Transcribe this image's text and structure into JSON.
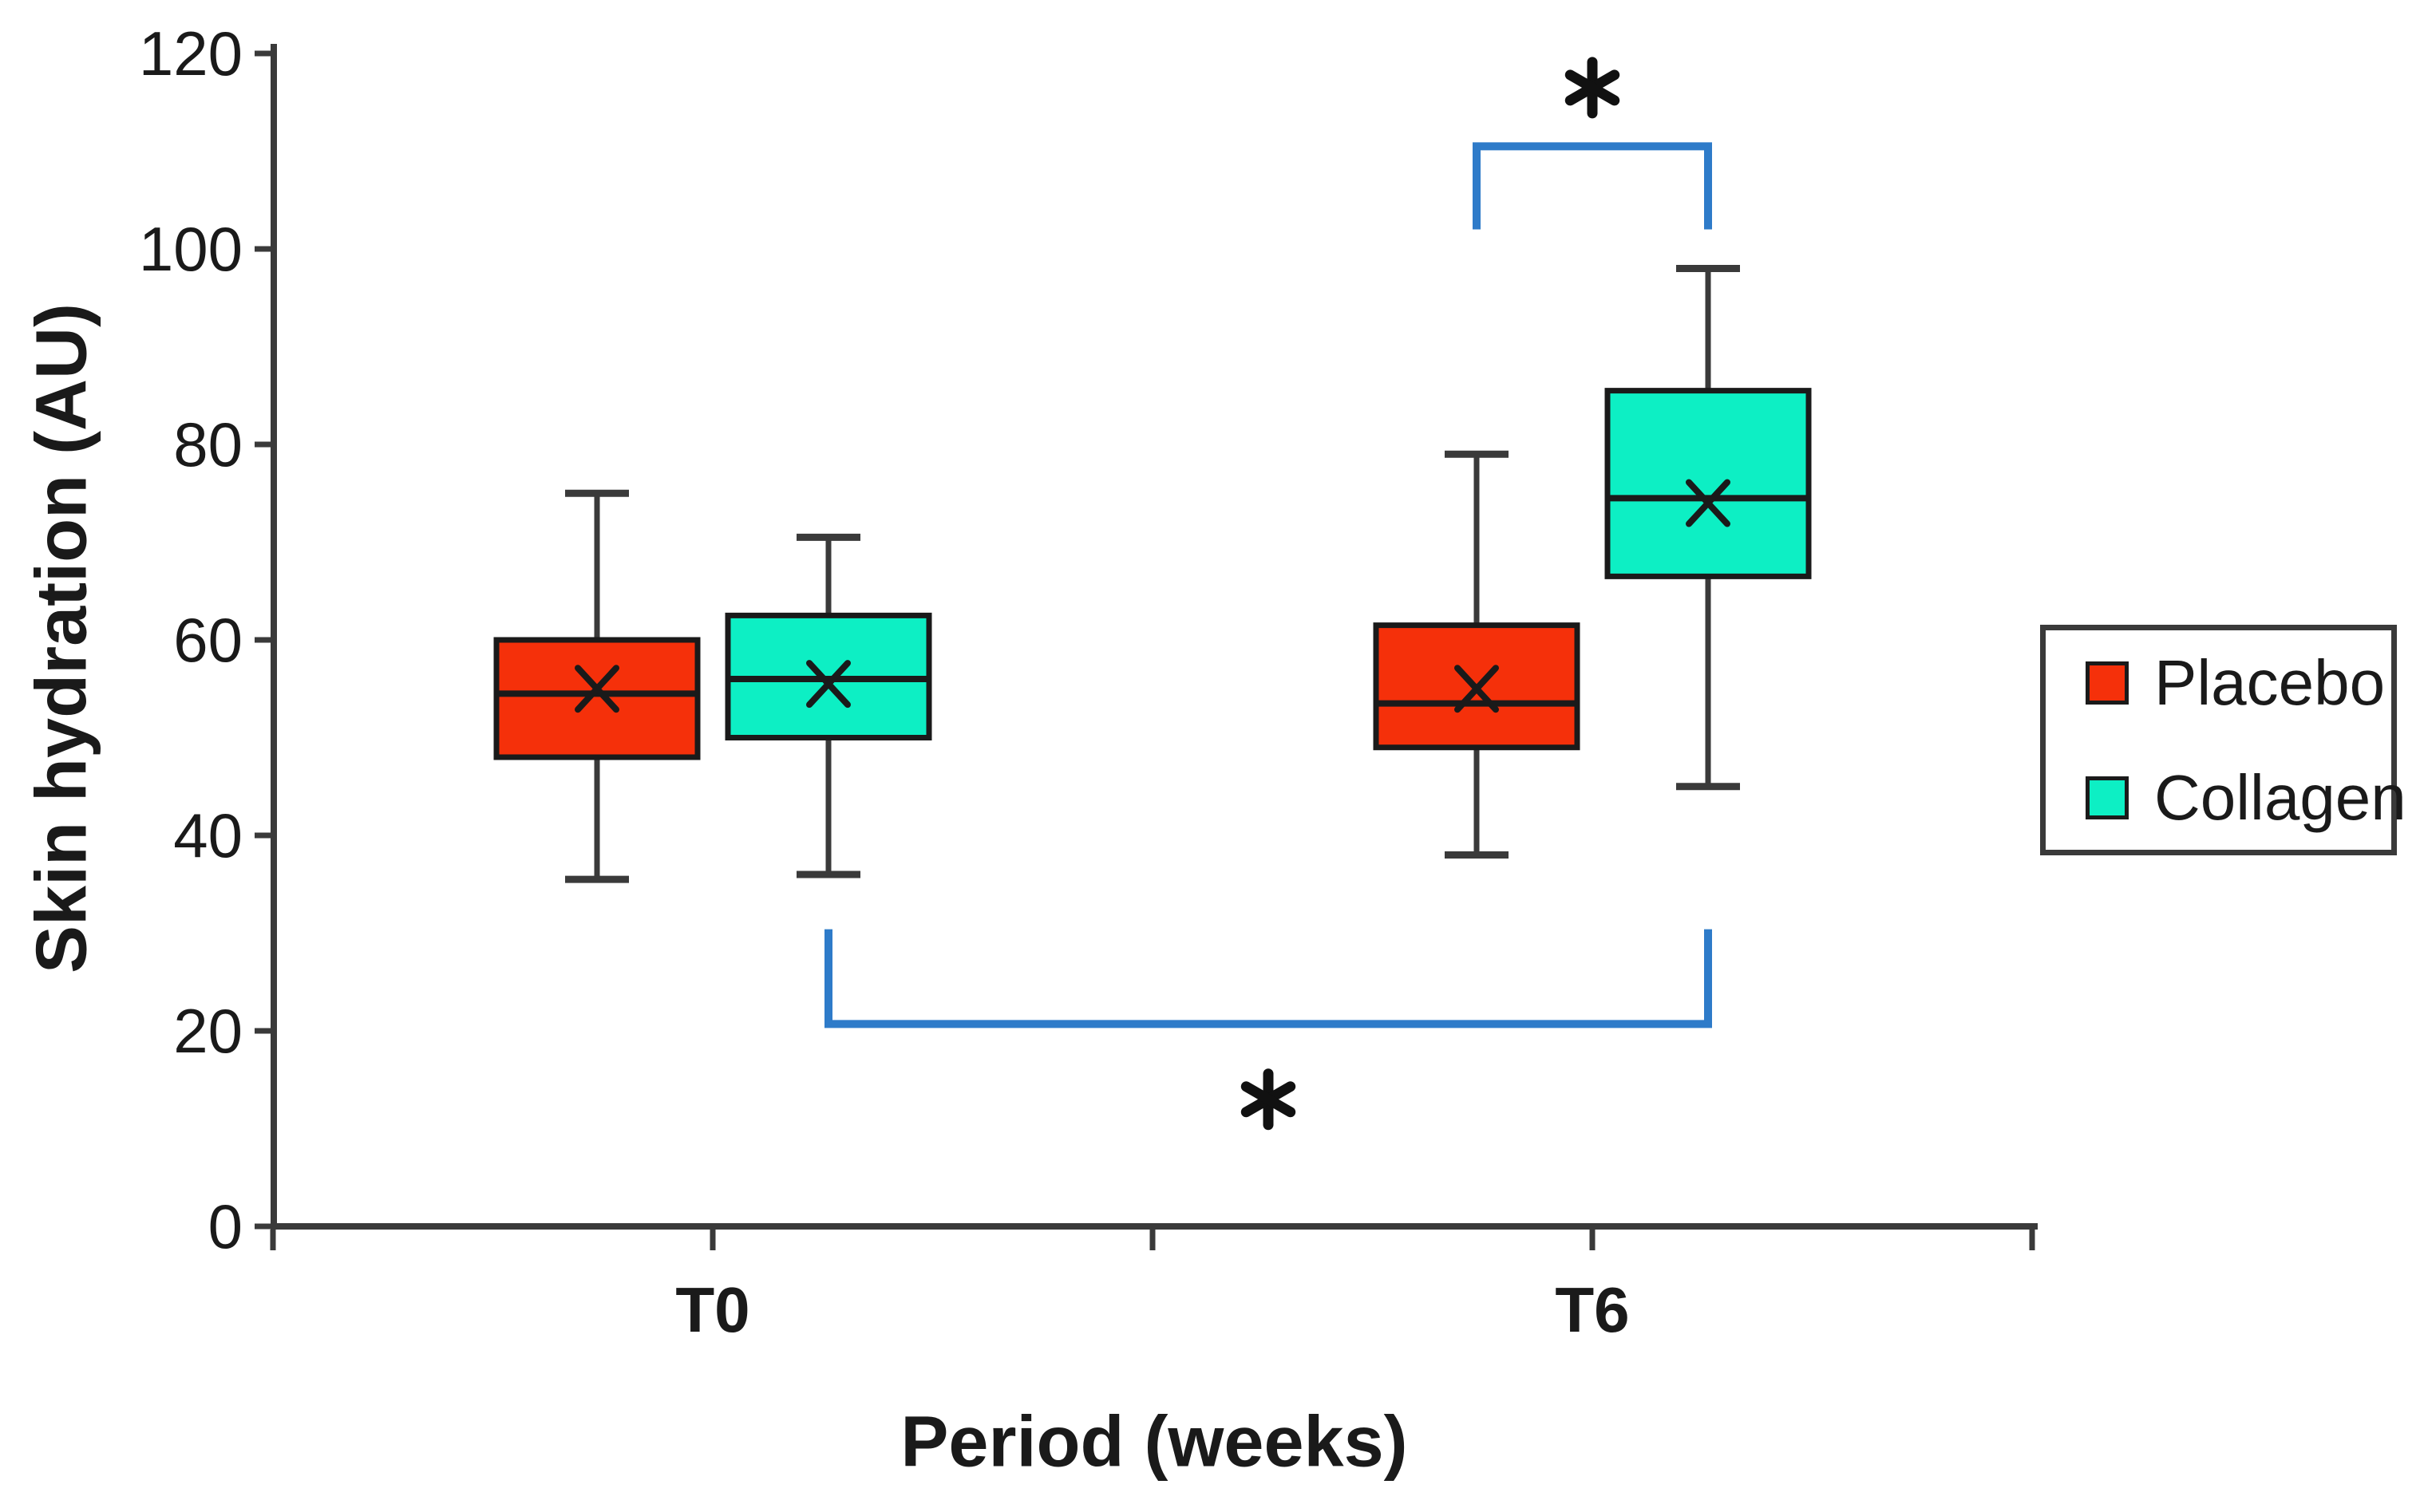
{
  "chart_data": {
    "type": "boxplot",
    "title": "",
    "xlabel": "Period (weeks)",
    "ylabel": "Skin hydration (AU)",
    "categories": [
      "T0",
      "T6"
    ],
    "ylim": [
      0,
      120
    ],
    "yticks": [
      0,
      20,
      40,
      60,
      80,
      100,
      120
    ],
    "ytick_labels": [
      "0",
      "20",
      "40",
      "60",
      "80",
      "100",
      "120"
    ],
    "grid": false,
    "legend_position": "right",
    "mean_marker": "x",
    "axis_color": "#3A3A3A",
    "box_edge_color": "#1A1A1A",
    "text_color": "#1A1A1A",
    "series": [
      {
        "name": "Placebo",
        "color": "#F5300A",
        "boxes": [
          {
            "category": "T0",
            "whisker_low": 35.5,
            "q1": 48,
            "median": 54.5,
            "mean": 55,
            "q3": 60,
            "whisker_high": 75
          },
          {
            "category": "T6",
            "whisker_low": 38,
            "q1": 49,
            "median": 53.5,
            "mean": 55,
            "q3": 61.5,
            "whisker_high": 79
          }
        ]
      },
      {
        "name": "Collagen",
        "color": "#0DEFC4",
        "boxes": [
          {
            "category": "T0",
            "whisker_low": 36,
            "q1": 50,
            "median": 56,
            "mean": 55.5,
            "q3": 62.5,
            "whisker_high": 70.5
          },
          {
            "category": "T6",
            "whisker_low": 45,
            "q1": 66.5,
            "median": 74.5,
            "mean": 74,
            "q3": 85.5,
            "whisker_high": 98
          }
        ]
      }
    ],
    "significance_brackets": [
      {
        "label": "*",
        "color": "#2E7BC9",
        "type": "top",
        "from": {
          "category": "T6",
          "series": "Placebo"
        },
        "to": {
          "category": "T6",
          "series": "Collagen"
        },
        "bar_y": 110.5,
        "leg_end_y": 102,
        "label_y": 116.5
      },
      {
        "label": "*",
        "color": "#2E7BC9",
        "type": "bottom",
        "from": {
          "category": "T0",
          "series": "Collagen"
        },
        "to": {
          "category": "T6",
          "series": "Collagen"
        },
        "bar_y": 20.7,
        "leg_end_y": 30.4,
        "label_y": 13
      }
    ]
  }
}
